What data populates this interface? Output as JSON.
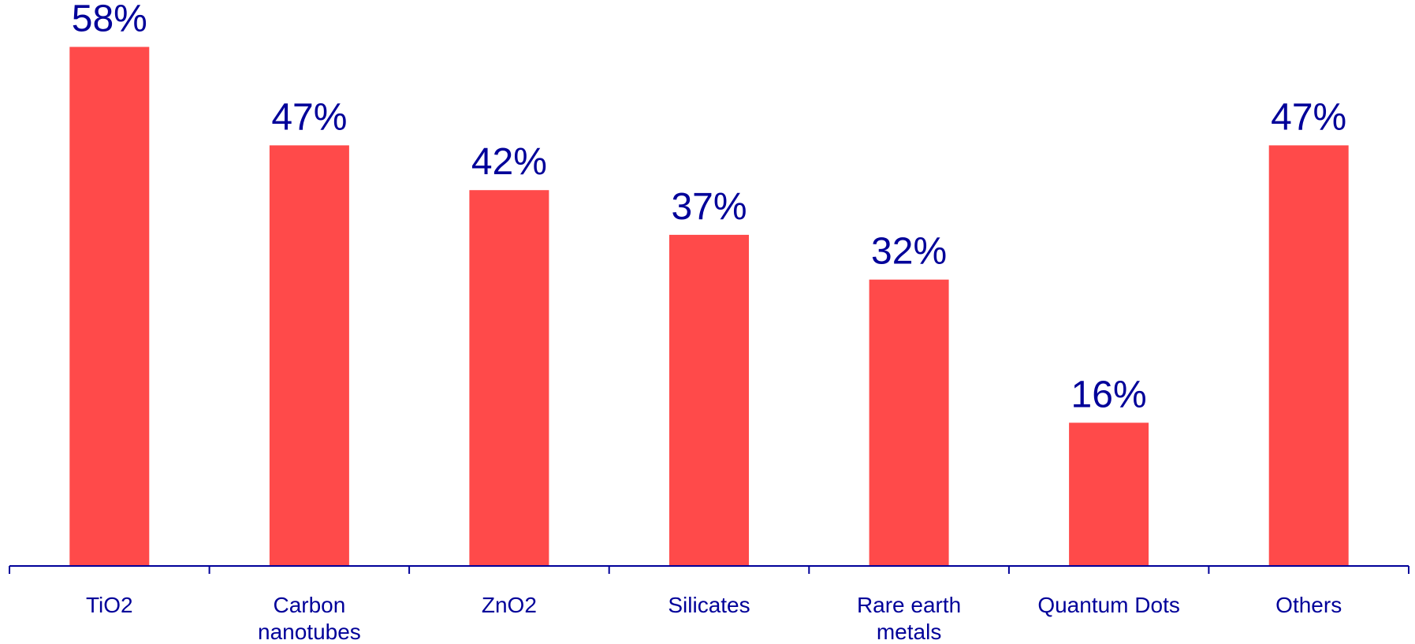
{
  "chart_data": {
    "type": "bar",
    "categories": [
      [
        "TiO2"
      ],
      [
        "Carbon",
        "nanotubes"
      ],
      [
        "ZnO2"
      ],
      [
        "Silicates"
      ],
      [
        "Rare earth",
        "metals"
      ],
      [
        "Quantum Dots"
      ],
      [
        "Others"
      ]
    ],
    "values": [
      58,
      47,
      42,
      37,
      32,
      16,
      47
    ],
    "value_labels": [
      "58%",
      "47%",
      "42%",
      "37%",
      "32%",
      "16%",
      "47%"
    ],
    "value_unit": "%",
    "title": "",
    "xlabel": "",
    "ylabel": "",
    "ylim": [
      0,
      61
    ],
    "grid": false,
    "legend": "none",
    "colors": {
      "bar": "#FF4A4A",
      "value_label": "#000099",
      "axis": "#000099",
      "tick_label": "#000099"
    }
  }
}
